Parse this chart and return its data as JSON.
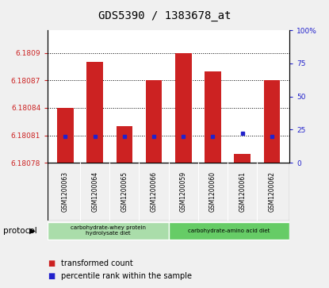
{
  "title": "GDS5390 / 1383678_at",
  "samples": [
    "GSM1200063",
    "GSM1200064",
    "GSM1200065",
    "GSM1200066",
    "GSM1200059",
    "GSM1200060",
    "GSM1200061",
    "GSM1200062"
  ],
  "transformed_counts": [
    6.18084,
    6.18089,
    6.18082,
    6.18087,
    6.1809,
    6.18088,
    6.18079,
    6.18087
  ],
  "percentile_ranks": [
    20,
    20,
    20,
    20,
    20,
    20,
    22,
    20
  ],
  "y_min": 6.18078,
  "y_max": 6.180925,
  "y_ticks": [
    6.18078,
    6.18081,
    6.18084,
    6.18087,
    6.1809
  ],
  "y_tick_labels": [
    "6.18078",
    "6.18081",
    "6.18084",
    "6.18087",
    "6.1809"
  ],
  "y2_ticks": [
    0,
    25,
    50,
    75,
    100
  ],
  "y2_tick_labels": [
    "0",
    "25",
    "50",
    "75",
    "100%"
  ],
  "bar_color": "#cc2222",
  "marker_color": "#2222cc",
  "bar_bottom": 6.18078,
  "protocol_groups": [
    {
      "label": "carbohydrate-whey protein\nhydrolysate diet",
      "samples": [
        0,
        1,
        2,
        3
      ],
      "color": "#aaddaa"
    },
    {
      "label": "carbohydrate-amino acid diet",
      "samples": [
        4,
        5,
        6,
        7
      ],
      "color": "#66cc66"
    }
  ],
  "protocol_label": "protocol",
  "legend_items": [
    {
      "label": "transformed count",
      "color": "#cc2222"
    },
    {
      "label": "percentile rank within the sample",
      "color": "#2222cc"
    }
  ],
  "bg_color": "#f0f0f0",
  "plot_bg": "#ffffff",
  "tick_color_left": "#cc2222",
  "tick_color_right": "#2222cc",
  "title_fontsize": 10,
  "label_area_color": "#cccccc",
  "protocol_label_fontsize": 7,
  "legend_fontsize": 7
}
